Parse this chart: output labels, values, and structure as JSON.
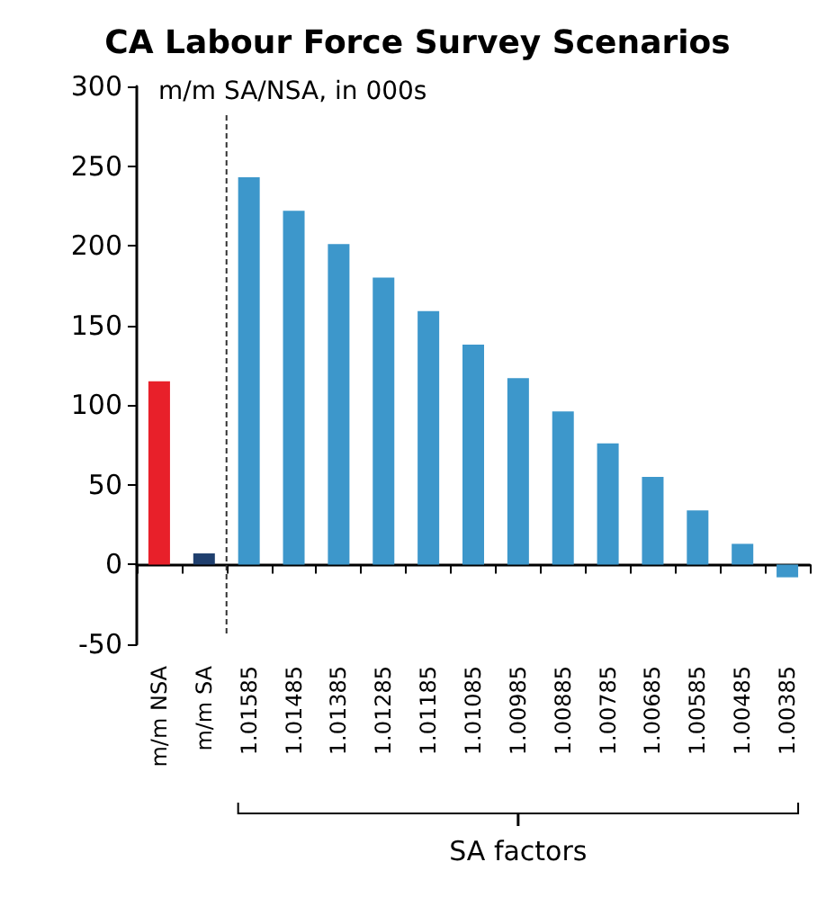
{
  "chart_data": {
    "type": "bar",
    "title": "CA Labour Force Survey Scenarios",
    "ylabel": "m/m SA/NSA, in 000s",
    "categories": [
      "m/m NSA",
      "m/m SA",
      "1.01585",
      "1.01485",
      "1.01385",
      "1.01285",
      "1.01185",
      "1.01085",
      "1.00985",
      "1.00885",
      "1.00785",
      "1.00685",
      "1.00585",
      "1.00485",
      "1.00385"
    ],
    "values": [
      115,
      7,
      243,
      222,
      201,
      180,
      159,
      138,
      117,
      96,
      76,
      55,
      34,
      13,
      -8
    ],
    "colors": [
      "#e8202a",
      "#1f3f6e",
      "#3d97cb",
      "#3d97cb",
      "#3d97cb",
      "#3d97cb",
      "#3d97cb",
      "#3d97cb",
      "#3d97cb",
      "#3d97cb",
      "#3d97cb",
      "#3d97cb",
      "#3d97cb",
      "#3d97cb",
      "#3d97cb"
    ],
    "ylim": [
      -50,
      300
    ],
    "yticks": [
      -50,
      0,
      50,
      100,
      150,
      200,
      250,
      300
    ],
    "annotations": [
      "SA factors"
    ]
  }
}
